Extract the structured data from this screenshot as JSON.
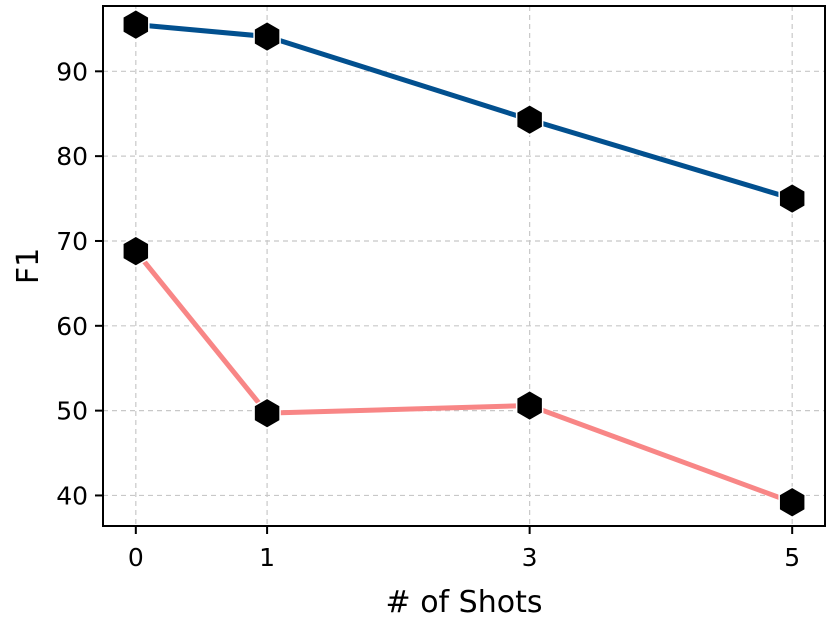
{
  "chart_data": {
    "type": "line",
    "title": "",
    "xlabel": "# of Shots",
    "ylabel": "F1",
    "x": [
      0,
      1,
      3,
      5
    ],
    "x_ticks": [
      "0",
      "1",
      "3",
      "5"
    ],
    "y_ticks": [
      "40",
      "50",
      "60",
      "70",
      "80",
      "90"
    ],
    "xlim": [
      -0.25,
      5.25
    ],
    "ylim": [
      36.4,
      97.7
    ],
    "grid": true,
    "legend": "none",
    "marker": "hexagon",
    "series": [
      {
        "color": "#02508f",
        "values": [
          95.5,
          94.1,
          84.3,
          75.0
        ]
      },
      {
        "color": "#f88686",
        "values": [
          68.8,
          49.7,
          50.6,
          39.2
        ]
      }
    ]
  }
}
